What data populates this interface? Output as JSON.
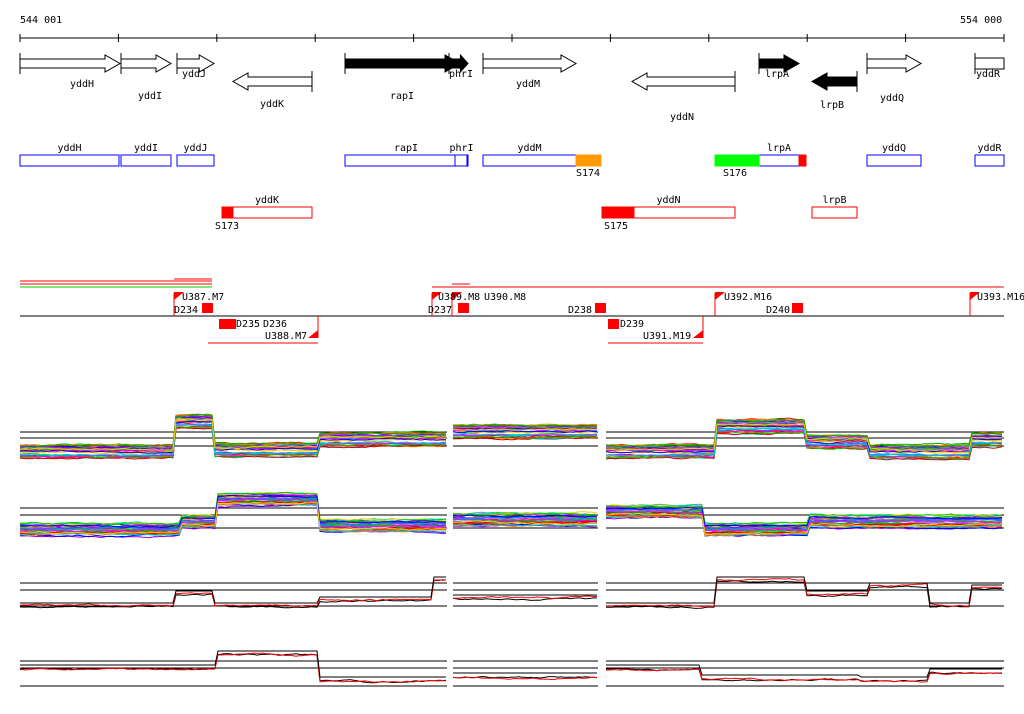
{
  "ruler": {
    "start_label": "544 001",
    "end_label": "554 000"
  },
  "genes": [
    {
      "name": "yddH",
      "strand": "+",
      "fill": "white"
    },
    {
      "name": "yddI",
      "strand": "+",
      "fill": "white"
    },
    {
      "name": "yddJ",
      "strand": "+",
      "fill": "white"
    },
    {
      "name": "yddK",
      "strand": "-",
      "fill": "white"
    },
    {
      "name": "rapI",
      "strand": "+",
      "fill": "black"
    },
    {
      "name": "phrI",
      "strand": "+",
      "fill": "black"
    },
    {
      "name": "yddM",
      "strand": "+",
      "fill": "white"
    },
    {
      "name": "yddN",
      "strand": "-",
      "fill": "white"
    },
    {
      "name": "lrpA",
      "strand": "+",
      "fill": "black"
    },
    {
      "name": "lrpB",
      "strand": "-",
      "fill": "black"
    },
    {
      "name": "yddQ",
      "strand": "+",
      "fill": "white"
    },
    {
      "name": "yddR",
      "strand": "+",
      "fill": "white"
    }
  ],
  "segments": [
    "S173",
    "S174",
    "S175",
    "S176"
  ],
  "features": [
    "U387.M7",
    "D234",
    "D235",
    "D236",
    "U388.M7",
    "U389.M8",
    "U390.M8",
    "D237",
    "D238",
    "D239",
    "U391.M19",
    "U392.M16",
    "D240",
    "U393.M16"
  ],
  "colors": {
    "plus_box": "#0000ff",
    "minus_box": "#ff0000",
    "S174": "#ff9900",
    "S176": "#00ff00",
    "feature": "#ff0000",
    "profile_highlight": "#ff0000"
  }
}
